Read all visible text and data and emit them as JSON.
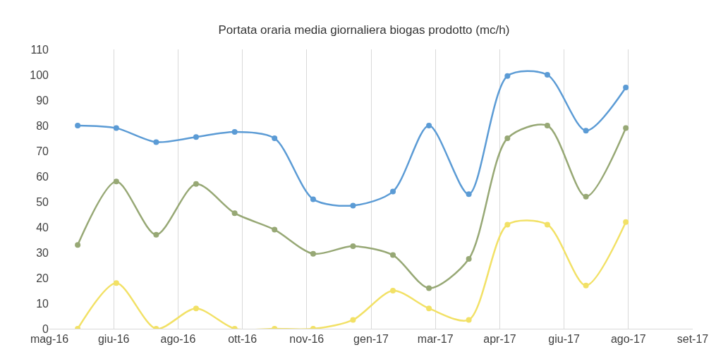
{
  "chart_data": {
    "type": "line",
    "title": "Portata oraria media giornaliera biogas prodotto (mc/h)",
    "x": [
      "2016-06",
      "2016-07",
      "2016-08",
      "2016-09",
      "2016-10",
      "2016-11",
      "2016-12",
      "2017-01",
      "2017-02",
      "2017-03",
      "2017-04",
      "2017-05",
      "2017-06",
      "2017-07",
      "2017-08"
    ],
    "series": [
      {
        "color": "#5b9bd5",
        "values": [
          80,
          79,
          73.5,
          75.5,
          77.5,
          75,
          51,
          48.5,
          54,
          80,
          53,
          99.5,
          100,
          78,
          95
        ]
      },
      {
        "color": "#97a875",
        "values": [
          33,
          58,
          37,
          57,
          45.5,
          39,
          29.5,
          32.5,
          29,
          16,
          27.5,
          75,
          80,
          52,
          79
        ]
      },
      {
        "color": "#f2e166",
        "values": [
          0,
          18,
          0,
          8,
          0,
          0,
          0,
          3.5,
          15,
          8,
          3.5,
          41,
          41,
          17,
          42
        ]
      }
    ],
    "xlim": [
      "2016-05-10",
      "2017-09-22"
    ],
    "xticks": [
      {
        "value": "2016-05-10",
        "label": "mag-16"
      },
      {
        "value": "2016-06-29",
        "label": "giu-16"
      },
      {
        "value": "2016-08-18",
        "label": "ago-16"
      },
      {
        "value": "2016-10-07",
        "label": "ott-16"
      },
      {
        "value": "2016-11-26",
        "label": "nov-16"
      },
      {
        "value": "2017-01-15",
        "label": "gen-17"
      },
      {
        "value": "2017-03-06",
        "label": "mar-17"
      },
      {
        "value": "2017-04-25",
        "label": "apr-17"
      },
      {
        "value": "2017-06-14",
        "label": "giu-17"
      },
      {
        "value": "2017-08-03",
        "label": "ago-17"
      },
      {
        "value": "2017-09-22",
        "label": "set-17"
      }
    ],
    "ylim": [
      0,
      110
    ],
    "yticks": [
      0,
      10,
      20,
      30,
      40,
      50,
      60,
      70,
      80,
      90,
      100,
      110
    ],
    "grid": "x",
    "marker": "circle",
    "line_style": "solid"
  }
}
